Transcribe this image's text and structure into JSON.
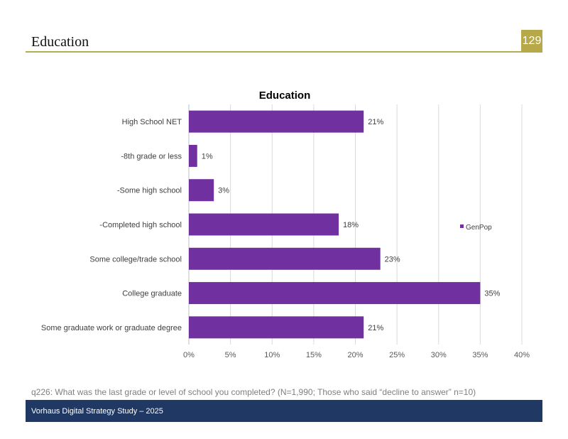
{
  "page": {
    "title": "Education",
    "page_number": "129",
    "footnote": "q226: What was the last grade or level of school you completed? (N=1,990; Those who said “decline to answer” n=10)",
    "footer": "Vorhaus Digital Strategy Study – 2025"
  },
  "colors": {
    "bar": "#7030a0",
    "accent_rule": "#b5ad52",
    "badge": "#b7a94a",
    "footer": "#1f3864"
  },
  "chart_data": {
    "type": "bar",
    "orientation": "horizontal",
    "title": "Education",
    "categories": [
      "High School NET",
      "-8th grade or less",
      "-Some high school",
      "-Completed high school",
      "Some college/trade school",
      "College graduate",
      "Some graduate work or graduate degree"
    ],
    "series": [
      {
        "name": "GenPop",
        "values": [
          21,
          1,
          3,
          18,
          23,
          35,
          21
        ],
        "labels": [
          "21%",
          "1%",
          "3%",
          "18%",
          "23%",
          "35%",
          "21%"
        ]
      }
    ],
    "xlim": [
      0,
      40
    ],
    "xticks": [
      "0%",
      "5%",
      "10%",
      "15%",
      "20%",
      "25%",
      "30%",
      "35%",
      "40%"
    ],
    "xlabel": "",
    "ylabel": "",
    "grid": true,
    "legend_position": "right"
  }
}
